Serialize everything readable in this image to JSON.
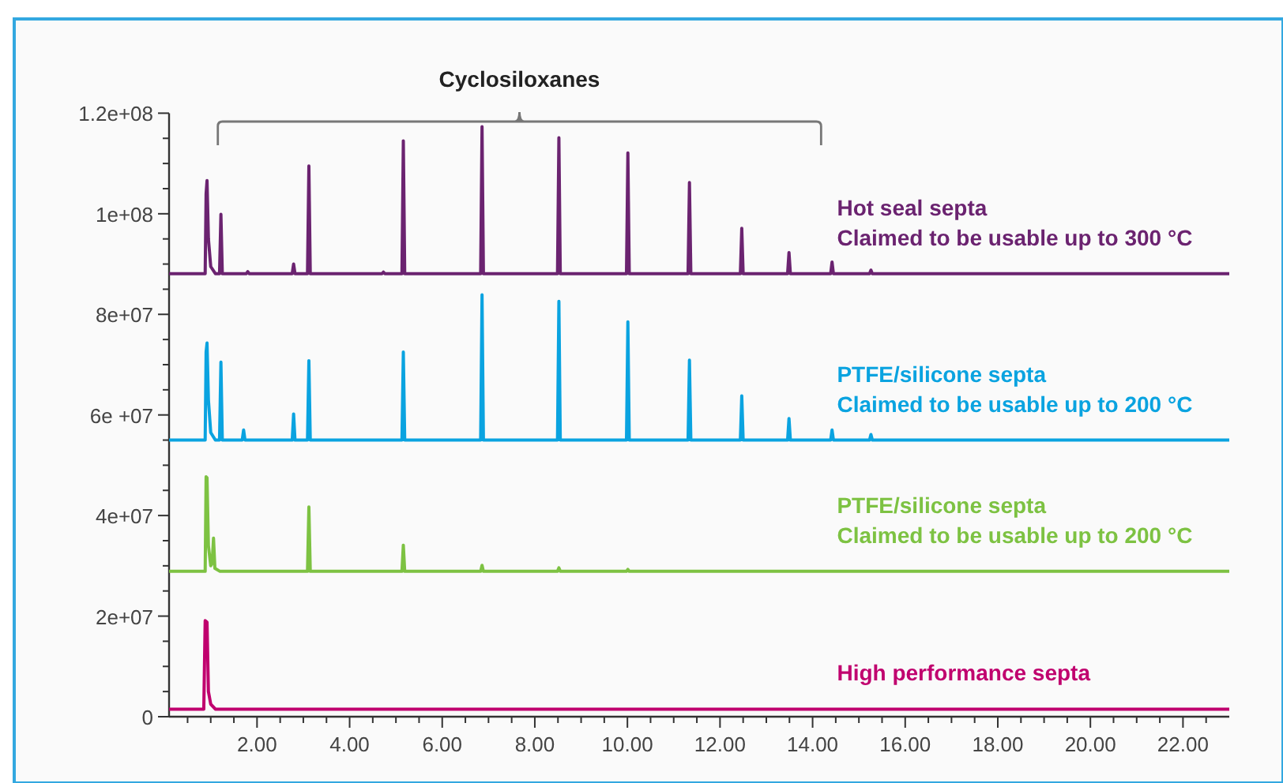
{
  "chart_data": {
    "type": "line",
    "annotations": [
      "Cyclosiloxanes"
    ],
    "xlim": [
      0.1,
      23.0
    ],
    "ylim": [
      0,
      120000000
    ],
    "xticks": [
      {
        "value": 0.5,
        "label": null
      },
      {
        "value": 1,
        "label": null
      },
      {
        "value": 1.5,
        "label": null
      },
      {
        "value": 2,
        "label": "2.00"
      },
      {
        "value": 2.5,
        "label": null
      },
      {
        "value": 3,
        "label": null
      },
      {
        "value": 3.5,
        "label": null
      },
      {
        "value": 4,
        "label": "4.00"
      },
      {
        "value": 4.5,
        "label": null
      },
      {
        "value": 5,
        "label": null
      },
      {
        "value": 5.5,
        "label": null
      },
      {
        "value": 6,
        "label": "6.00"
      },
      {
        "value": 6.5,
        "label": null
      },
      {
        "value": 7,
        "label": null
      },
      {
        "value": 7.5,
        "label": null
      },
      {
        "value": 8,
        "label": "8.00"
      },
      {
        "value": 8.5,
        "label": null
      },
      {
        "value": 9,
        "label": null
      },
      {
        "value": 9.5,
        "label": null
      },
      {
        "value": 10,
        "label": "10.00"
      },
      {
        "value": 10.5,
        "label": null
      },
      {
        "value": 11,
        "label": null
      },
      {
        "value": 11.5,
        "label": null
      },
      {
        "value": 12,
        "label": "12.00"
      },
      {
        "value": 12.5,
        "label": null
      },
      {
        "value": 13,
        "label": null
      },
      {
        "value": 13.5,
        "label": null
      },
      {
        "value": 14,
        "label": "14.00"
      },
      {
        "value": 14.5,
        "label": null
      },
      {
        "value": 15,
        "label": null
      },
      {
        "value": 15.5,
        "label": null
      },
      {
        "value": 16,
        "label": "16.00"
      },
      {
        "value": 16.5,
        "label": null
      },
      {
        "value": 17,
        "label": null
      },
      {
        "value": 17.5,
        "label": null
      },
      {
        "value": 18,
        "label": "18.00"
      },
      {
        "value": 18.5,
        "label": null
      },
      {
        "value": 19,
        "label": null
      },
      {
        "value": 19.5,
        "label": null
      },
      {
        "value": 20,
        "label": "20.00"
      },
      {
        "value": 20.5,
        "label": null
      },
      {
        "value": 21,
        "label": null
      },
      {
        "value": 21.5,
        "label": null
      },
      {
        "value": 22,
        "label": "22.00"
      },
      {
        "value": 22.5,
        "label": null
      }
    ],
    "yticks": [
      0,
      {
        "value": 5000000,
        "label": null
      },
      {
        "value": 10000000,
        "label": null
      },
      {
        "value": 15000000,
        "label": null
      },
      {
        "value": 20000000,
        "label": "2e+07"
      },
      {
        "value": 25000000,
        "label": null
      },
      {
        "value": 30000000,
        "label": null
      },
      {
        "value": 35000000,
        "label": null
      },
      {
        "value": 40000000,
        "label": "4e+07"
      },
      {
        "value": 45000000,
        "label": null
      },
      {
        "value": 50000000,
        "label": null
      },
      {
        "value": 55000000,
        "label": null
      },
      {
        "value": 60000000,
        "label": "6e +07"
      },
      {
        "value": 65000000,
        "label": null
      },
      {
        "value": 70000000,
        "label": null
      },
      {
        "value": 75000000,
        "label": null
      },
      {
        "value": 80000000,
        "label": "8e+07"
      },
      {
        "value": 85000000,
        "label": null
      },
      {
        "value": 90000000,
        "label": null
      },
      {
        "value": 95000000,
        "label": null
      },
      {
        "value": 100000000,
        "label": "1e+08"
      },
      {
        "value": 105000000,
        "label": null
      },
      {
        "value": 110000000,
        "label": null
      },
      {
        "value": 115000000,
        "label": null
      },
      {
        "value": 120000000,
        "label": "1.2e+08"
      }
    ],
    "grid": false,
    "marker": "none",
    "line_style": "solid",
    "series": [
      {
        "name": "Hot seal septa\nClaimed to be usable up to 300 °C",
        "color": "#6b2370",
        "x": [
          0.1,
          0.88,
          0.9,
          0.92,
          0.95,
          1.0,
          1.1,
          1.19,
          1.22,
          1.25,
          1.77,
          1.8,
          1.83,
          2.76,
          2.79,
          2.82,
          3.09,
          3.12,
          3.15,
          4.7,
          4.73,
          4.76,
          5.13,
          5.16,
          5.19,
          6.83,
          6.86,
          6.89,
          8.49,
          8.52,
          8.55,
          9.98,
          10.01,
          10.04,
          11.31,
          11.34,
          11.37,
          12.44,
          12.47,
          12.5,
          13.46,
          13.49,
          13.52,
          14.39,
          14.42,
          14.45,
          15.23,
          15.26,
          15.29,
          23.0
        ],
        "values": [
          88100000,
          88100000,
          104000000,
          106600000,
          95000000,
          89500000,
          88100000,
          88100000,
          99900000,
          88100000,
          88100000,
          88500000,
          88100000,
          88100000,
          90000000,
          88100000,
          88100000,
          109500000,
          88100000,
          88100000,
          88400000,
          88100000,
          88100000,
          114500000,
          88100000,
          88100000,
          117300000,
          88100000,
          88100000,
          115100000,
          88100000,
          88100000,
          112100000,
          88100000,
          88100000,
          106200000,
          88100000,
          88100000,
          97100000,
          88100000,
          88100000,
          92300000,
          88100000,
          88100000,
          90400000,
          88100000,
          88100000,
          88800000,
          88100000,
          88100000
        ]
      },
      {
        "name": "PTFE/silicone septa\nClaimed to be usable up to 200 °C",
        "color": "#0aa3e0",
        "x": [
          0.1,
          0.88,
          0.9,
          0.92,
          0.95,
          1.0,
          1.1,
          1.19,
          1.22,
          1.25,
          1.68,
          1.71,
          1.74,
          2.76,
          2.79,
          2.82,
          3.09,
          3.12,
          3.15,
          5.13,
          5.16,
          5.19,
          6.83,
          6.86,
          6.89,
          8.49,
          8.52,
          8.55,
          9.98,
          10.01,
          10.04,
          11.31,
          11.34,
          11.37,
          12.44,
          12.47,
          12.5,
          13.46,
          13.49,
          13.52,
          14.39,
          14.42,
          14.45,
          15.23,
          15.26,
          15.29,
          23.0
        ],
        "values": [
          55000000,
          55000000,
          72500000,
          74300000,
          63000000,
          56500000,
          55000000,
          55000000,
          70500000,
          55000000,
          55000000,
          57000000,
          55000000,
          55000000,
          60200000,
          55000000,
          55000000,
          70800000,
          55000000,
          55000000,
          72500000,
          55000000,
          55000000,
          83900000,
          55000000,
          55000000,
          82600000,
          55000000,
          55000000,
          78500000,
          55000000,
          55000000,
          70900000,
          55000000,
          55000000,
          63800000,
          55000000,
          55000000,
          59300000,
          55000000,
          55000000,
          57000000,
          55000000,
          55000000,
          56100000,
          55000000,
          55000000
        ]
      },
      {
        "name": "PTFE/silicone septa\nClaimed to be usable up to 200 °C",
        "color": "#7dc242",
        "x": [
          0.1,
          0.88,
          0.9,
          0.92,
          0.95,
          1.0,
          1.03,
          1.06,
          1.09,
          1.2,
          3.09,
          3.12,
          3.15,
          5.13,
          5.16,
          5.19,
          6.83,
          6.86,
          6.89,
          8.49,
          8.52,
          8.55,
          9.98,
          10.01,
          10.04,
          23.0
        ],
        "values": [
          28900000,
          28900000,
          47700000,
          47500000,
          34000000,
          30000000,
          30500000,
          35500000,
          29500000,
          28900000,
          28900000,
          41700000,
          28900000,
          28900000,
          34100000,
          28900000,
          28900000,
          30100000,
          28900000,
          28900000,
          29600000,
          28900000,
          28900000,
          29300000,
          28900000,
          28900000
        ]
      },
      {
        "name": "High performance septa",
        "color": "#c0006e",
        "x": [
          0.1,
          0.85,
          0.88,
          0.92,
          0.95,
          1.0,
          1.1,
          23.0
        ],
        "values": [
          1500000,
          1500000,
          19100000,
          18800000,
          5000000,
          2500000,
          1500000,
          1500000
        ]
      }
    ]
  }
}
